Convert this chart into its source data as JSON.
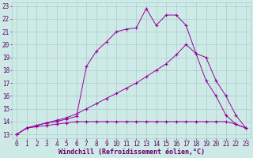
{
  "xlabel": "Windchill (Refroidissement éolien,°C)",
  "xlim": [
    -0.5,
    23.5
  ],
  "ylim": [
    12.7,
    23.3
  ],
  "xticks": [
    0,
    1,
    2,
    3,
    4,
    5,
    6,
    7,
    8,
    9,
    10,
    11,
    12,
    13,
    14,
    15,
    16,
    17,
    18,
    19,
    20,
    21,
    22,
    23
  ],
  "yticks": [
    13,
    14,
    15,
    16,
    17,
    18,
    19,
    20,
    21,
    22,
    23
  ],
  "background_color": "#cdeae7",
  "line_color": "#990099",
  "grid_color": "#aacccc",
  "line1_x": [
    0,
    1,
    2,
    3,
    4,
    5,
    6,
    7,
    8,
    9,
    10,
    11,
    12,
    13,
    14,
    15,
    16,
    17,
    18,
    19,
    20,
    21,
    22,
    23
  ],
  "line1_y": [
    13.0,
    13.5,
    13.6,
    13.7,
    13.8,
    13.9,
    14.0,
    14.0,
    14.0,
    14.0,
    14.0,
    14.0,
    14.0,
    14.0,
    14.0,
    14.0,
    14.0,
    14.0,
    14.0,
    14.0,
    14.0,
    14.0,
    13.8,
    13.5
  ],
  "line2_x": [
    0,
    1,
    2,
    3,
    4,
    5,
    6,
    7,
    8,
    9,
    10,
    11,
    12,
    13,
    14,
    15,
    16,
    17,
    18,
    19,
    20,
    21,
    22,
    23
  ],
  "line2_y": [
    13.0,
    13.5,
    13.7,
    13.9,
    14.1,
    14.3,
    14.6,
    15.0,
    15.4,
    15.8,
    16.2,
    16.6,
    17.0,
    17.5,
    18.0,
    18.5,
    19.2,
    20.0,
    19.3,
    19.0,
    17.2,
    16.0,
    14.5,
    13.5
  ],
  "line3_x": [
    0,
    1,
    2,
    3,
    4,
    5,
    6,
    7,
    8,
    9,
    10,
    11,
    12,
    13,
    14,
    15,
    16,
    17,
    18,
    19,
    20,
    21,
    22,
    23
  ],
  "line3_y": [
    13.0,
    13.5,
    13.7,
    13.9,
    14.0,
    14.2,
    14.4,
    18.3,
    19.5,
    20.2,
    21.0,
    21.2,
    21.3,
    22.8,
    21.5,
    22.3,
    22.3,
    21.5,
    19.3,
    17.2,
    16.0,
    14.5,
    13.8,
    13.5
  ],
  "font_color": "#660066",
  "tick_fontsize": 5.5,
  "label_fontsize": 6.0
}
